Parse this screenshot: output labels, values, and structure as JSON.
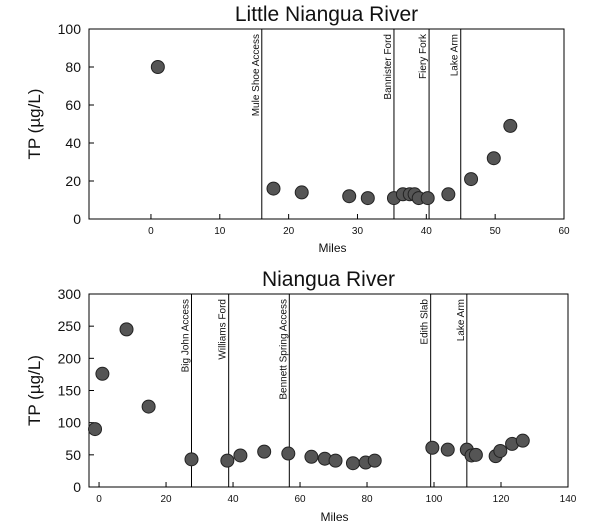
{
  "chart_data": [
    {
      "type": "scatter",
      "title": "Little Niangua River",
      "xlabel": "Miles",
      "ylabel": "TP (µg/L)",
      "xlim": [
        -9,
        60
      ],
      "ylim": [
        0,
        100
      ],
      "xticks": [
        0,
        10,
        20,
        30,
        40,
        50,
        60
      ],
      "yticks": [
        0,
        20,
        40,
        60,
        80,
        100
      ],
      "series": [
        {
          "points": [
            [
              1,
              80
            ],
            [
              17.8,
              16
            ],
            [
              21.9,
              14
            ],
            [
              28.8,
              12
            ],
            [
              31.5,
              11
            ],
            [
              35.3,
              11
            ],
            [
              36.6,
              13
            ],
            [
              37.6,
              13
            ],
            [
              38.3,
              13
            ],
            [
              38.9,
              11
            ],
            [
              40.2,
              11
            ],
            [
              43.2,
              13
            ],
            [
              46.5,
              21
            ],
            [
              49.8,
              32
            ],
            [
              52.2,
              49
            ]
          ]
        }
      ],
      "annotations": [
        {
          "x": 16.1,
          "label": "Mule Shoe Access"
        },
        {
          "x": 35.3,
          "label": "Bannister Ford"
        },
        {
          "x": 40.4,
          "label": "Fiery Fork"
        },
        {
          "x": 45.0,
          "label": "Lake Arm"
        }
      ],
      "grid": false
    },
    {
      "type": "scatter",
      "title": "Niangua River",
      "xlabel": "Miles",
      "ylabel": "TP (µg/L)",
      "xlim": [
        -3,
        140
      ],
      "ylim": [
        0,
        300
      ],
      "xticks": [
        0,
        20,
        40,
        60,
        80,
        100,
        120,
        140
      ],
      "yticks": [
        0,
        50,
        100,
        150,
        200,
        250,
        300
      ],
      "series": [
        {
          "points": [
            [
              -1.2,
              90
            ],
            [
              1,
              176
            ],
            [
              8.2,
              245
            ],
            [
              14.8,
              125
            ],
            [
              27.6,
              43
            ],
            [
              38.3,
              41
            ],
            [
              42.2,
              49
            ],
            [
              49.3,
              55
            ],
            [
              56.5,
              52
            ],
            [
              63.4,
              47
            ],
            [
              67.4,
              44
            ],
            [
              70.6,
              41
            ],
            [
              75.8,
              37
            ],
            [
              79.6,
              38
            ],
            [
              82.3,
              41
            ],
            [
              99.5,
              61
            ],
            [
              104.1,
              58
            ],
            [
              109.8,
              58
            ],
            [
              111.2,
              49
            ],
            [
              112.5,
              50
            ],
            [
              118.4,
              48
            ],
            [
              119.8,
              56
            ],
            [
              123.3,
              67
            ],
            [
              126.5,
              72
            ]
          ]
        }
      ],
      "annotations": [
        {
          "x": 27.6,
          "label": "Big John Access"
        },
        {
          "x": 38.7,
          "label": "Williams Ford"
        },
        {
          "x": 56.8,
          "label": "Bennett Spring Access"
        },
        {
          "x": 99,
          "label": "Edith Slab"
        },
        {
          "x": 109.8,
          "label": "Lake Arm"
        }
      ],
      "grid": false
    }
  ]
}
